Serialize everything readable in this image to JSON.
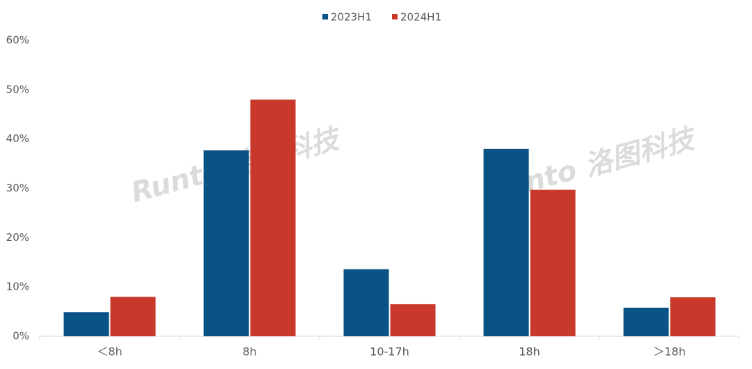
{
  "chart_data": {
    "type": "bar",
    "categories": [
      "＜8h",
      "8h",
      "10-17h",
      "18h",
      "＞18h"
    ],
    "series": [
      {
        "name": "2023H1",
        "color": "#0b5286",
        "values": [
          4.9,
          37.7,
          13.6,
          38.0,
          5.8
        ]
      },
      {
        "name": "2024H1",
        "color": "#c8392b",
        "values": [
          8.0,
          48.0,
          6.5,
          29.7,
          7.9
        ]
      }
    ],
    "ylim": [
      0,
      60
    ],
    "yticks": [
      {
        "value": 0,
        "label": "0%"
      },
      {
        "value": 10,
        "label": "10%"
      },
      {
        "value": 20,
        "label": "20%"
      },
      {
        "value": 30,
        "label": "30%"
      },
      {
        "value": 40,
        "label": "40%"
      },
      {
        "value": 50,
        "label": "50%"
      },
      {
        "value": 60,
        "label": "60%"
      }
    ],
    "grid": false,
    "legend": "top",
    "watermark": "Runto 洛图科技"
  }
}
